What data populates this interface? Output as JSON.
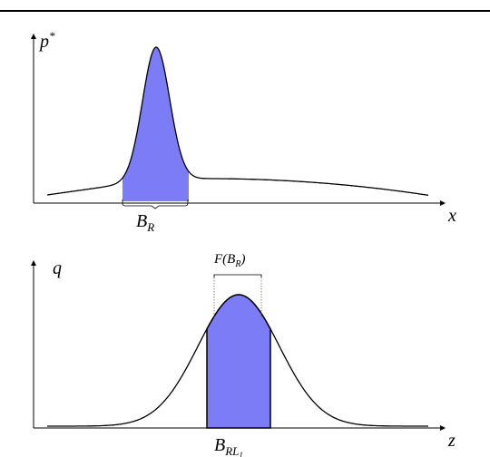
{
  "top_panel": {
    "y_label": {
      "base": "p",
      "sup": "*"
    },
    "x_label": "x",
    "region_label": {
      "base": "B",
      "sub": "R"
    }
  },
  "bottom_panel": {
    "y_label": "q",
    "x_label": "z",
    "mapped_label": {
      "base": "F(B",
      "sub": "R",
      "tail": ")"
    },
    "region_label": {
      "base": "B",
      "sub": "RL",
      "subsub": "1"
    }
  }
}
